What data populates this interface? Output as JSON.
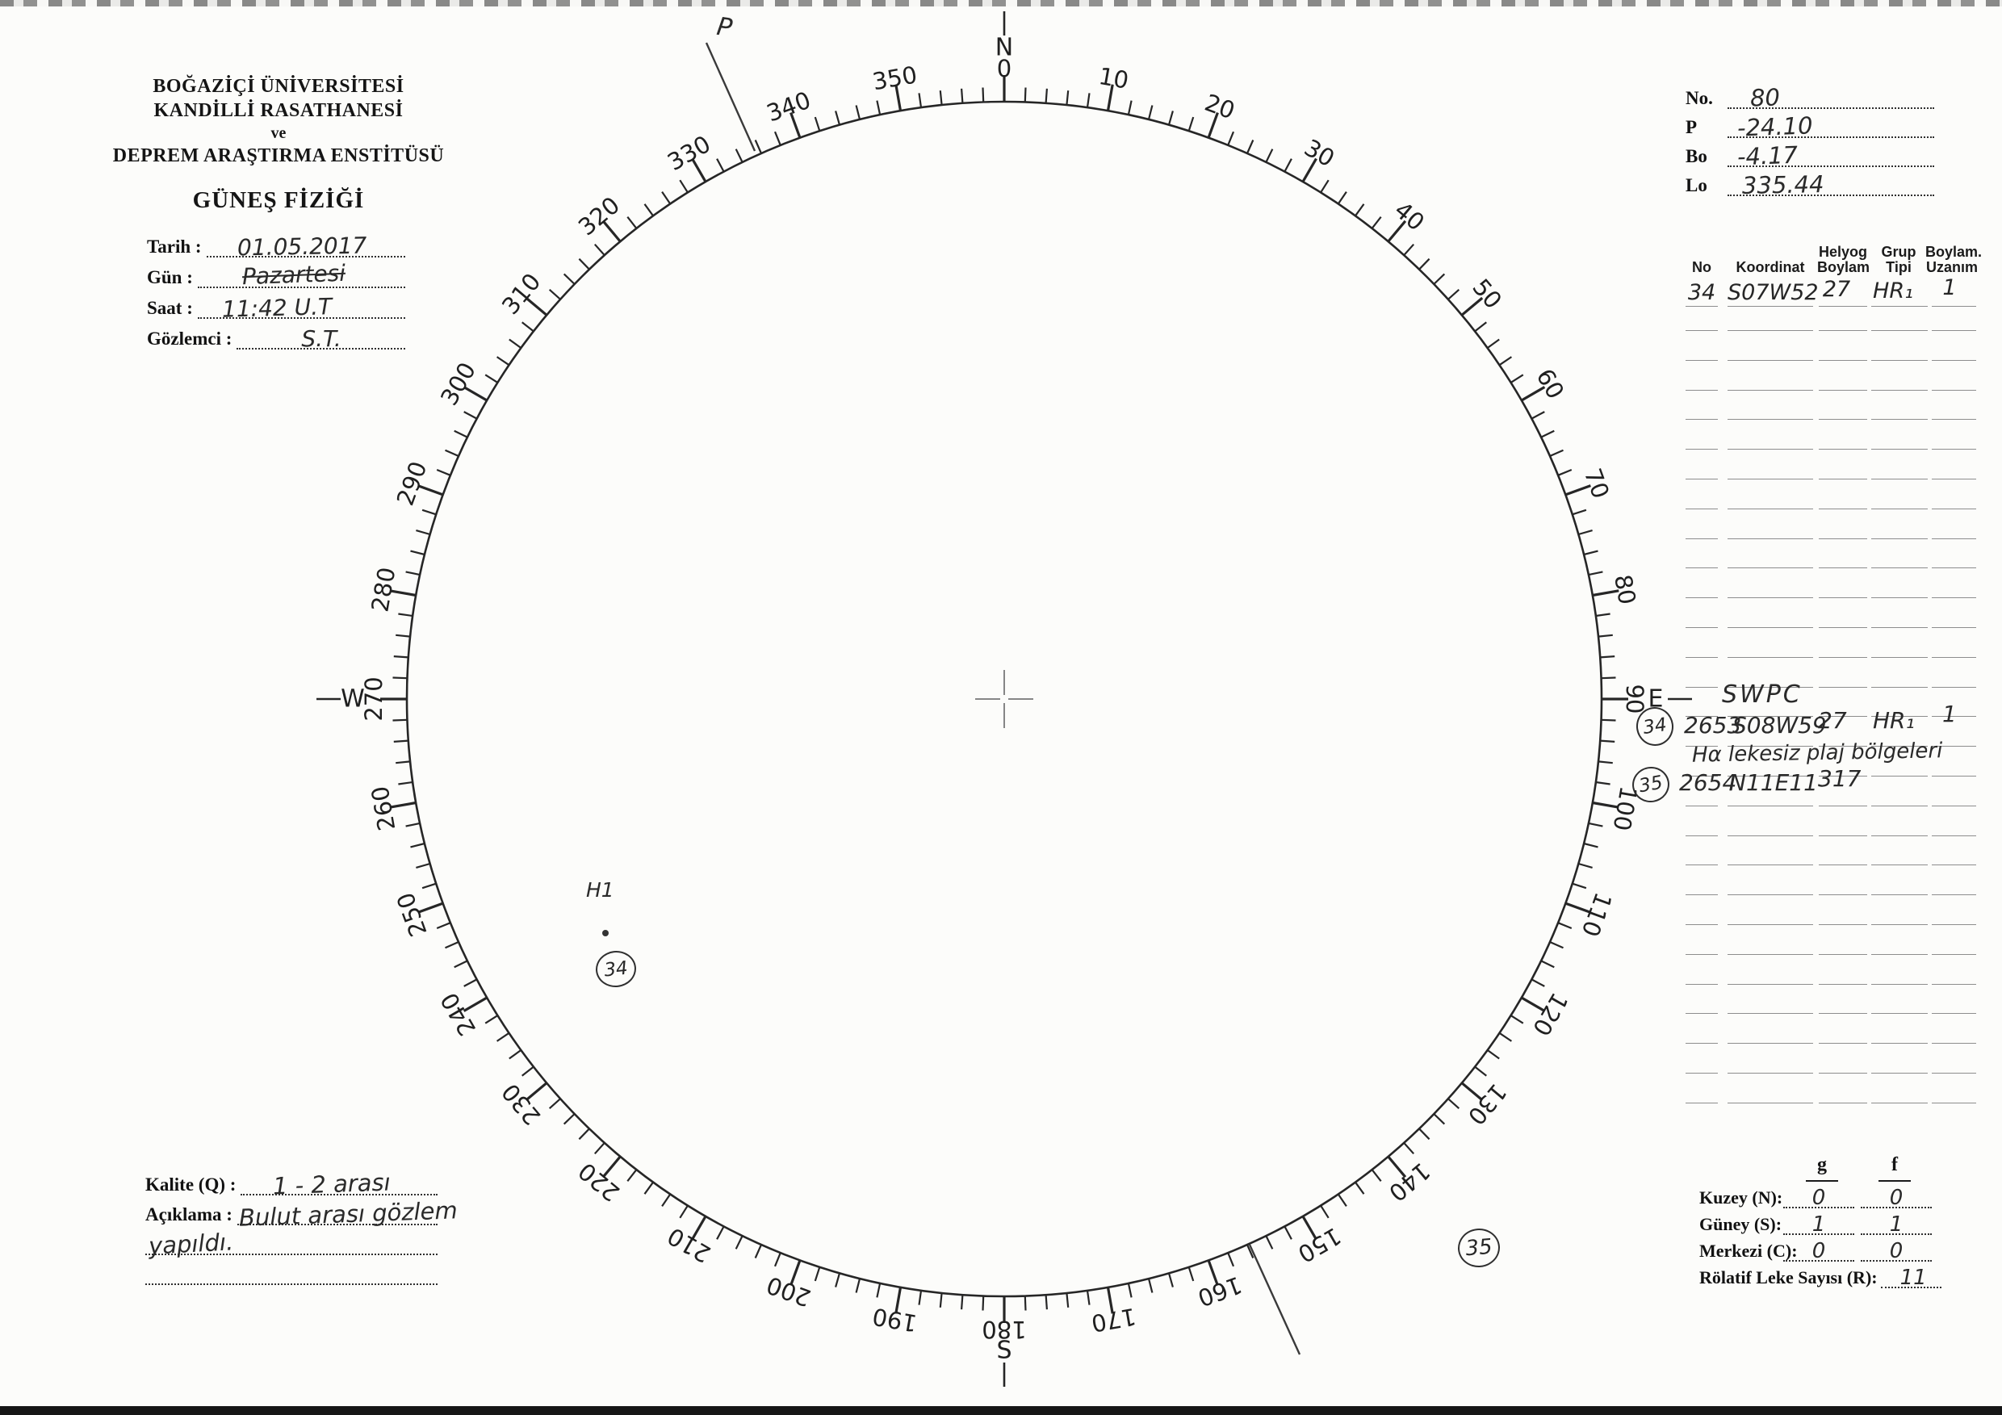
{
  "header": {
    "line1": "BOĞAZİÇİ ÜNİVERSİTESİ",
    "line2": "KANDİLLİ RASATHANESİ",
    "line3": "ve",
    "line4": "DEPREM ARAŞTIRMA ENSTİTÜSÜ",
    "title": "GÜNEŞ FİZİĞİ"
  },
  "observation_fields": [
    {
      "label": "Tarih :",
      "value": "01.05.2017"
    },
    {
      "label": "Gün :",
      "value": "Pazartesi"
    },
    {
      "label": "Saat :",
      "value": "11:42  U.T"
    },
    {
      "label": "Gözlemci :",
      "value": "S.T."
    }
  ],
  "ephemeris_fields": [
    {
      "label": "No.",
      "value": "80"
    },
    {
      "label": "P",
      "value": "-24.10"
    },
    {
      "label": "Bo",
      "value": "-4.17"
    },
    {
      "label": "Lo",
      "value": "335.44"
    }
  ],
  "region_table": {
    "headers": {
      "no": "No",
      "koordinat": "Koordinat",
      "helyog": "Helyog\nBoylam",
      "grup": "Grup\nTipi",
      "boylam": "Boylam.\nUzanım"
    },
    "filled_row": {
      "no": "34",
      "koordinat": "S07W52",
      "helyog": "27",
      "grup": "HR₁",
      "uzanim": "1"
    },
    "blank_row_count": 27
  },
  "swpc": {
    "title": "SWPC",
    "row_2653": {
      "badge": "34",
      "no": "2653",
      "koordinat": "S08W59",
      "helyog": "27",
      "grup": "HR₁",
      "uzanim": "1"
    },
    "note": "Hα lekesiz plaj bölgeleri",
    "row_2654": {
      "badge": "35",
      "no": "2654",
      "koordinat": "N11E11",
      "helyog": "317"
    }
  },
  "disk": {
    "degree_tick_step": 2,
    "degree_label_step": 10,
    "cardinals": [
      {
        "deg": 0,
        "letter": "N"
      },
      {
        "deg": 90,
        "letter": "E"
      },
      {
        "deg": 180,
        "letter": "S"
      },
      {
        "deg": 270,
        "letter": "W"
      }
    ],
    "p_mark_label": "P",
    "spot_label": "H1",
    "spot_badge": "34",
    "floating_badge": "35"
  },
  "quality": {
    "kalite_label": "Kalite (Q) :",
    "kalite_value": "1 - 2  arası",
    "aciklama_label": "Açıklama :",
    "aciklama_value_line1": "Bulut  arası  gözlem",
    "aciklama_value_line2": "yapıldı."
  },
  "counts": {
    "g_header": "g",
    "f_header": "f",
    "rows": [
      {
        "label": "Kuzey (N):",
        "g": "0",
        "f": "0"
      },
      {
        "label": "Güney (S):",
        "g": "1",
        "f": "1"
      },
      {
        "label": "Merkezi (C):",
        "g": "0",
        "f": "0"
      }
    ],
    "relative_label": "Rölatif Leke Sayısı (R):",
    "relative_value": "11"
  }
}
